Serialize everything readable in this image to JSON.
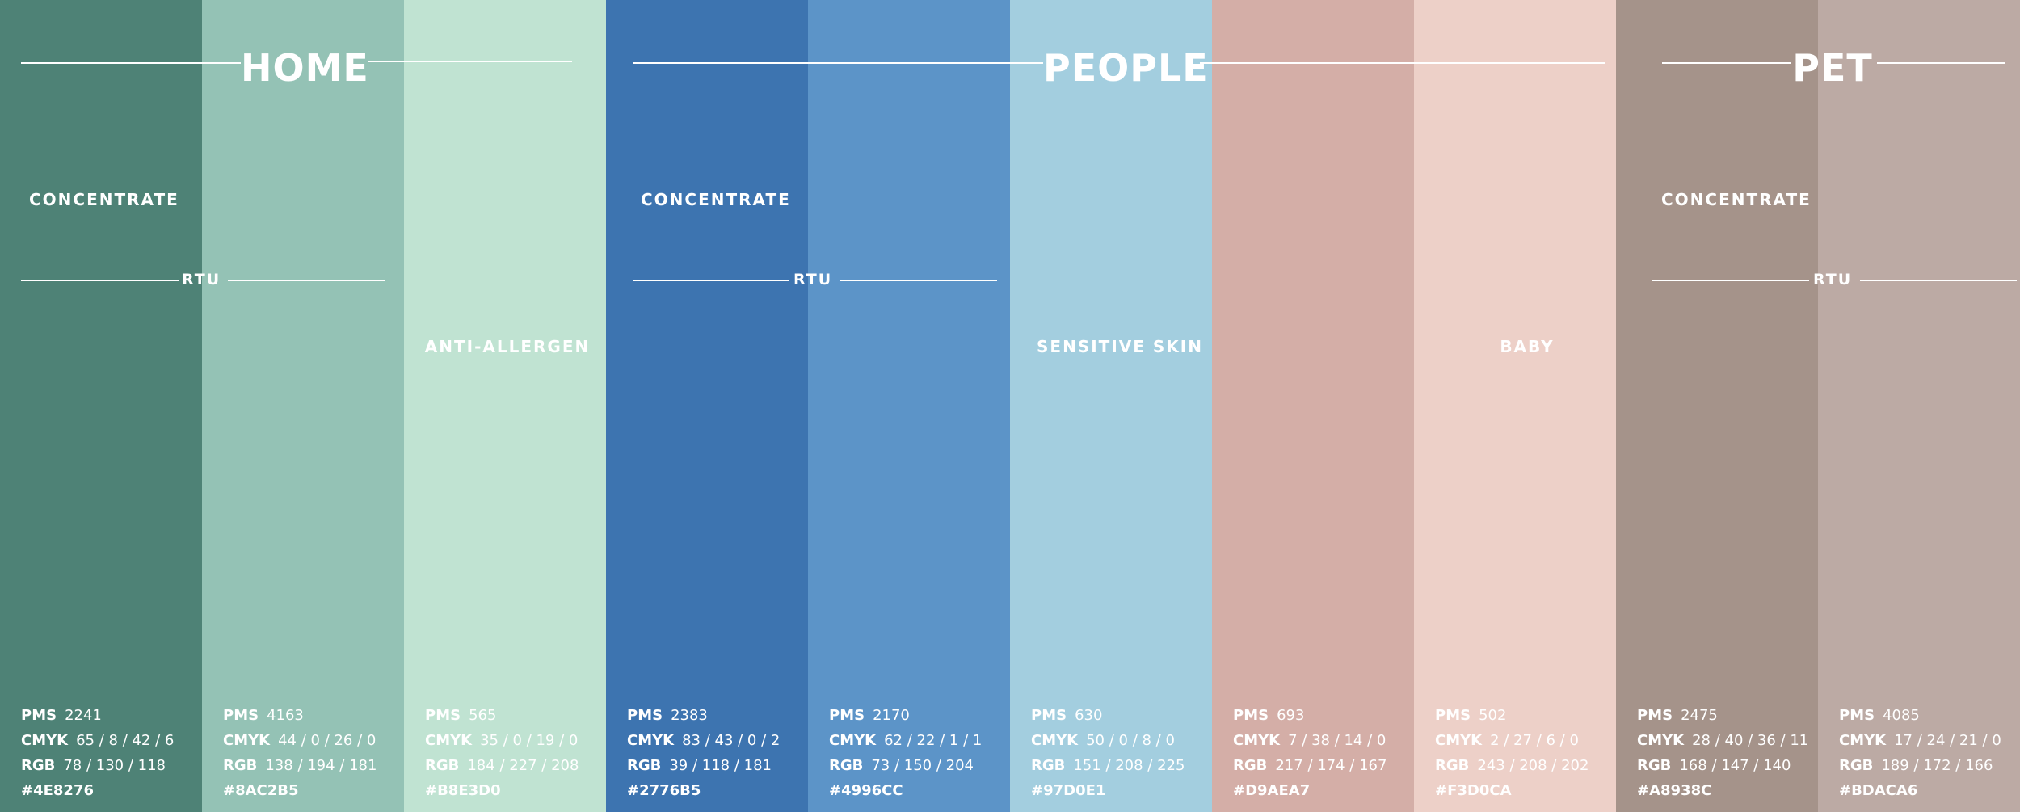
{
  "swatches": [
    {
      "pms": "2241",
      "cmyk": "65 / 8 / 42 / 6",
      "rgb": "78 / 130 / 118",
      "hex": "#4E8276",
      "color": "#4E8276"
    },
    {
      "pms": "4163",
      "cmyk": "44 / 0 / 26 / 0",
      "rgb": "138 / 194 / 181",
      "hex": "#8AC2B5",
      "color": "#94C2B5"
    },
    {
      "pms": "565",
      "cmyk": "35 / 0 / 19 / 0",
      "rgb": "184 / 227 / 208",
      "hex": "#B8E3D0",
      "color": "#C0E3D2"
    },
    {
      "pms": "2383",
      "cmyk": "83 / 43 / 0 / 2",
      "rgb": "39 / 118 / 181",
      "hex": "#2776B5",
      "color": "#3D74B0"
    },
    {
      "pms": "2170",
      "cmyk": "62 / 22 / 1 / 1",
      "rgb": "73 / 150 / 204",
      "hex": "#4996CC",
      "color": "#5C94C8"
    },
    {
      "pms": "630",
      "cmyk": "50 / 0 / 8 / 0",
      "rgb": "151 / 208 / 225",
      "hex": "#97D0E1",
      "color": "#A3CEDF"
    },
    {
      "pms": "693",
      "cmyk": "7 / 38 / 14 / 0",
      "rgb": "217 / 174 / 167",
      "hex": "#D9AEA7",
      "color": "#D4AEA7"
    },
    {
      "pms": "502",
      "cmyk": "2 / 27 / 6 / 0",
      "rgb": "243 / 208 / 202",
      "hex": "#F3D0CA",
      "color": "#EDD0C8"
    },
    {
      "pms": "2475",
      "cmyk": "28 / 40 / 36 / 11",
      "rgb": "168 / 147 / 140",
      "hex": "#A8938C",
      "color": "#A5938A"
    },
    {
      "pms": "4085",
      "cmyk": "17 / 24 / 21 / 0",
      "rgb": "189 / 172 / 166",
      "hex": "#BDACA6",
      "color": "#BCAAA4"
    }
  ],
  "spec_labels": {
    "pms": "PMS",
    "cmyk": "CMYK",
    "rgb": "RGB"
  },
  "groups": {
    "home": {
      "title": "HOME",
      "concentrate": "CONCENTRATE",
      "rtu": "RTU",
      "product": "ANTI-ALLERGEN"
    },
    "people": {
      "title": "PEOPLE",
      "concentrate": "CONCENTRATE",
      "rtu": "RTU",
      "product1": "SENSITIVE SKIN",
      "product2": "BABY"
    },
    "pet": {
      "title": "PET",
      "concentrate": "CONCENTRATE",
      "rtu": "RTU"
    }
  }
}
